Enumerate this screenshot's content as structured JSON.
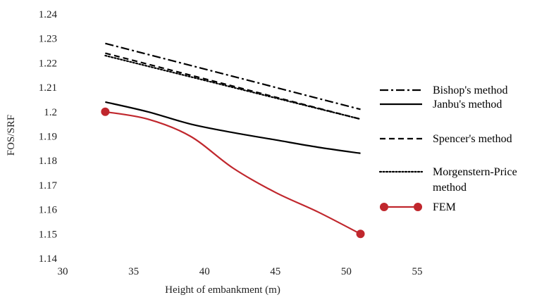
{
  "chart_data": {
    "type": "line",
    "xlabel": "Height of embankment (m)",
    "ylabel": "FOS/SRF",
    "xlim": [
      30,
      55
    ],
    "ylim": [
      1.14,
      1.24
    ],
    "xticks": [
      30,
      35,
      40,
      45,
      50,
      55
    ],
    "yticks": [
      1.14,
      1.15,
      1.16,
      1.17,
      1.18,
      1.19,
      1.2,
      1.21,
      1.22,
      1.23,
      1.24
    ],
    "ytick_labels": [
      "1.14",
      "1.15",
      "1.16",
      "1.17",
      "1.18",
      "1.19",
      "1.2",
      "1.21",
      "1.22",
      "1.23",
      "1.24"
    ],
    "grid": false,
    "legend_position": "right",
    "series": [
      {
        "name": "Bishop's method",
        "style": "dash-dot",
        "color": "#000000",
        "points": [
          [
            33,
            1.228
          ],
          [
            51,
            1.201
          ]
        ]
      },
      {
        "name": "Janbu's method",
        "style": "solid",
        "color": "#000000",
        "points": [
          [
            33,
            1.204
          ],
          [
            36,
            1.2
          ],
          [
            39,
            1.195
          ],
          [
            42,
            1.1915
          ],
          [
            45,
            1.1885
          ],
          [
            48,
            1.1855
          ],
          [
            51,
            1.183
          ]
        ]
      },
      {
        "name": "Spencer's method",
        "style": "dashed",
        "color": "#000000",
        "points": [
          [
            33,
            1.224
          ],
          [
            51,
            1.197
          ]
        ]
      },
      {
        "name": "Morgenstern-Price method",
        "legend_lines": [
          "Morgenstern-Price",
          "method"
        ],
        "style": "dotted",
        "color": "#000000",
        "points": [
          [
            33,
            1.223
          ],
          [
            51,
            1.197
          ]
        ]
      },
      {
        "name": "FEM",
        "style": "solid-marker",
        "color": "#c0272d",
        "points": [
          [
            33,
            1.2
          ],
          [
            36,
            1.197
          ],
          [
            39,
            1.19
          ],
          [
            42,
            1.177
          ],
          [
            45,
            1.167
          ],
          [
            48,
            1.159
          ],
          [
            51,
            1.15
          ]
        ],
        "marker_points": [
          [
            33,
            1.2
          ],
          [
            51,
            1.15
          ]
        ]
      }
    ]
  }
}
